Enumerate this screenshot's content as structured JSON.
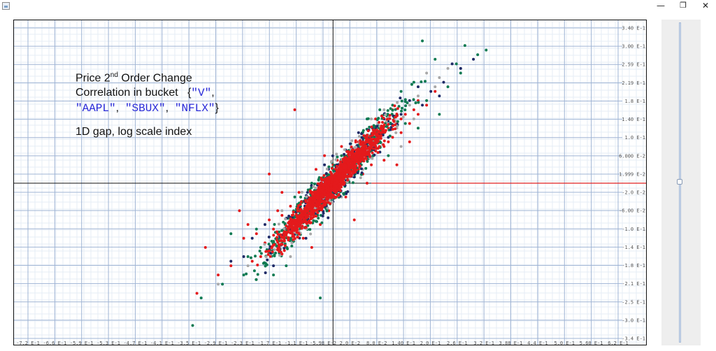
{
  "window": {
    "minimize_glyph": "—",
    "maximize_glyph": "❐",
    "close_glyph": "✕"
  },
  "annotation": {
    "line1_pre": "Price 2",
    "line1_sup": "nd",
    "line1_post": " Order Change",
    "line2_text": "Correlation in bucket ",
    "brace_open": "{",
    "sym1": "\"V\"",
    "comma": ",",
    "sym2": "\"AAPL\"",
    "sym3": "\"SBUX\"",
    "sym4": "\"NFLX\"",
    "brace_close": "}",
    "line4": "1D gap, log scale index"
  },
  "colors": {
    "grid_major": "#9fb4d4",
    "grid_minor": "#e6ecf5",
    "axis": "#111111",
    "reference_line": "#e02020",
    "series": [
      "#e41a1c",
      "#0e7a52",
      "#1f2a66",
      "#a8a8a8"
    ]
  },
  "chart_data": {
    "type": "scatter",
    "title": "",
    "xlabel": "",
    "ylabel": "",
    "grid": true,
    "legend": "none",
    "xlim": [
      -0.75,
      0.68
    ],
    "ylim": [
      -0.355,
      0.355
    ],
    "y_ticks": [
      "3.40 E-1",
      "3.00 E-1",
      "2.59 E-1",
      "2.19 E-1",
      "1.8 E-1",
      "1.40 E-1",
      "1.0 E-1",
      "6.000 E-2",
      "1.999 E-2",
      "-2.0 E-2",
      "-6.00 E-2",
      "-1.0 E-1",
      "-1.4 E-1",
      "-1.8 E-1",
      "-2.1 E-1",
      "-2.5 E-1",
      "-3.0 E-1",
      "-3.4 E-1"
    ],
    "x_ticks": [
      "-7.2 E-1",
      "-6.6 E-1",
      "-5.9 E-1",
      "-5.3 E-1",
      "-4.7 E-1",
      "-4.1 E-1",
      "-3.5 E-1",
      "-2.9 E-1",
      "-2.3 E-1",
      "-1.7 E-1",
      "-1.1 E-1",
      "-5.98 E-2",
      "2.0 E-2",
      "8.0 E-2",
      "1.40 E-1",
      "2.0 E-1",
      "2.6 E-1",
      "3.2 E-1",
      "3.88 E-1",
      "4.4 E-1",
      "5.0 E-1",
      "5.60 E-1",
      "6.2 E-1"
    ],
    "reference_line_y": 0,
    "trend": {
      "slope": 1.0,
      "intercept": 0.0
    },
    "series": [
      {
        "color": "#a8a8a8",
        "points": [
          [
            -0.27,
            -0.22
          ],
          [
            -0.2,
            -0.18
          ],
          [
            -0.15,
            -0.15
          ],
          [
            -0.12,
            -0.06
          ],
          [
            -0.05,
            -0.04
          ],
          [
            0.0,
            0.02
          ],
          [
            0.05,
            0.06
          ],
          [
            0.1,
            0.09
          ],
          [
            0.15,
            0.12
          ],
          [
            0.18,
            0.17
          ],
          [
            0.2,
            0.19
          ],
          [
            0.24,
            0.21
          ],
          [
            0.27,
            0.25
          ],
          [
            0.09,
            0.14
          ],
          [
            -0.08,
            -0.11
          ],
          [
            0.02,
            -0.03
          ],
          [
            0.12,
            0.16
          ],
          [
            0.22,
            0.24
          ],
          [
            -0.18,
            -0.21
          ],
          [
            0.16,
            0.08
          ],
          [
            0.3,
            0.25
          ],
          [
            -0.1,
            -0.16
          ],
          [
            0.07,
            0.03
          ],
          [
            0.19,
            0.14
          ],
          [
            0.25,
            0.23
          ]
        ]
      },
      {
        "color": "#1f2a66",
        "points": [
          [
            -0.24,
            -0.17
          ],
          [
            -0.19,
            -0.12
          ],
          [
            -0.16,
            -0.09
          ],
          [
            -0.1,
            -0.12
          ],
          [
            -0.06,
            -0.02
          ],
          [
            -0.02,
            0.04
          ],
          [
            0.04,
            0.05
          ],
          [
            0.08,
            0.1
          ],
          [
            0.12,
            0.14
          ],
          [
            0.16,
            0.15
          ],
          [
            0.2,
            0.21
          ],
          [
            0.23,
            0.2
          ],
          [
            0.25,
            0.19
          ],
          [
            0.3,
            0.25
          ],
          [
            0.33,
            0.27
          ],
          [
            0.28,
            0.26
          ],
          [
            -0.14,
            -0.18
          ],
          [
            0.0,
            -0.04
          ],
          [
            0.1,
            0.12
          ],
          [
            0.21,
            0.17
          ],
          [
            -0.08,
            -0.07
          ],
          [
            0.13,
            0.1
          ],
          [
            0.18,
            0.18
          ],
          [
            -0.21,
            -0.16
          ],
          [
            0.06,
            0.11
          ],
          [
            0.26,
            0.22
          ]
        ]
      },
      {
        "color": "#0e7a52",
        "points": [
          [
            -0.33,
            -0.31
          ],
          [
            -0.31,
            -0.25
          ],
          [
            -0.26,
            -0.22
          ],
          [
            -0.24,
            -0.11
          ],
          [
            -0.2,
            -0.16
          ],
          [
            -0.17,
            -0.14
          ],
          [
            -0.14,
            -0.2
          ],
          [
            -0.12,
            -0.13
          ],
          [
            -0.1,
            -0.09
          ],
          [
            -0.07,
            -0.08
          ],
          [
            -0.05,
            0.0
          ],
          [
            -0.02,
            -0.05
          ],
          [
            0.0,
            0.03
          ],
          [
            0.02,
            0.06
          ],
          [
            0.05,
            0.02
          ],
          [
            0.07,
            0.11
          ],
          [
            0.09,
            0.07
          ],
          [
            0.12,
            0.11
          ],
          [
            0.14,
            0.17
          ],
          [
            0.17,
            0.13
          ],
          [
            0.19,
            0.22
          ],
          [
            0.22,
            0.18
          ],
          [
            0.24,
            0.27
          ],
          [
            0.27,
            0.21
          ],
          [
            0.29,
            0.26
          ],
          [
            0.31,
            0.3
          ],
          [
            0.34,
            0.28
          ],
          [
            0.36,
            0.29
          ],
          [
            0.21,
            0.31
          ],
          [
            -0.03,
            -0.25
          ],
          [
            0.13,
            0.06
          ],
          [
            -0.21,
            -0.2
          ],
          [
            -0.15,
            -0.15
          ],
          [
            0.03,
            -0.02
          ],
          [
            0.11,
            0.16
          ],
          [
            0.25,
            0.15
          ],
          [
            -0.09,
            -0.03
          ],
          [
            0.16,
            0.2
          ],
          [
            0.3,
            0.24
          ],
          [
            -0.18,
            -0.1
          ],
          [
            0.06,
            0.08
          ],
          [
            0.2,
            0.12
          ],
          [
            -0.11,
            -0.18
          ],
          [
            0.08,
            0.14
          ],
          [
            0.01,
            0.0
          ]
        ]
      },
      {
        "color": "#e41a1c",
        "points": [
          [
            -0.32,
            -0.24
          ],
          [
            -0.3,
            -0.14
          ],
          [
            -0.27,
            -0.2
          ],
          [
            -0.24,
            -0.18
          ],
          [
            -0.22,
            -0.06
          ],
          [
            -0.21,
            -0.12
          ],
          [
            -0.19,
            -0.17
          ],
          [
            -0.18,
            -0.11
          ],
          [
            -0.16,
            -0.13
          ],
          [
            -0.15,
            -0.08
          ],
          [
            -0.14,
            -0.1
          ],
          [
            -0.13,
            -0.14
          ],
          [
            -0.12,
            -0.07
          ],
          [
            -0.11,
            -0.1
          ],
          [
            -0.1,
            -0.05
          ],
          [
            -0.09,
            -0.08
          ],
          [
            -0.08,
            -0.11
          ],
          [
            -0.07,
            -0.04
          ],
          [
            -0.06,
            -0.07
          ],
          [
            -0.05,
            -0.02
          ],
          [
            -0.04,
            -0.05
          ],
          [
            -0.03,
            -0.01
          ],
          [
            -0.02,
            -0.03
          ],
          [
            -0.01,
            0.01
          ],
          [
            0.0,
            -0.01
          ],
          [
            0.01,
            0.02
          ],
          [
            0.02,
            0.0
          ],
          [
            0.03,
            0.04
          ],
          [
            0.04,
            0.02
          ],
          [
            0.05,
            0.05
          ],
          [
            0.06,
            0.03
          ],
          [
            0.07,
            0.07
          ],
          [
            0.08,
            0.05
          ],
          [
            0.09,
            0.09
          ],
          [
            0.1,
            0.07
          ],
          [
            0.11,
            0.1
          ],
          [
            0.12,
            0.08
          ],
          [
            0.13,
            0.12
          ],
          [
            0.14,
            0.1
          ],
          [
            0.15,
            0.13
          ],
          [
            0.16,
            0.11
          ],
          [
            0.17,
            0.15
          ],
          [
            0.18,
            0.13
          ],
          [
            0.19,
            0.16
          ],
          [
            0.2,
            0.18
          ],
          [
            0.22,
            0.17
          ],
          [
            0.24,
            0.2
          ],
          [
            -0.09,
            0.16
          ],
          [
            -0.15,
            0.02
          ],
          [
            0.15,
            0.04
          ],
          [
            0.05,
            -0.08
          ],
          [
            -0.05,
            -0.14
          ],
          [
            0.1,
            0.14
          ],
          [
            -0.12,
            -0.02
          ],
          [
            -0.02,
            0.06
          ],
          [
            0.08,
            0.0
          ],
          [
            0.02,
            0.08
          ],
          [
            -0.07,
            -0.12
          ],
          [
            0.12,
            0.05
          ],
          [
            0.18,
            0.09
          ],
          [
            -0.17,
            -0.16
          ],
          [
            -0.04,
            0.03
          ],
          [
            0.06,
            0.09
          ],
          [
            0.14,
            0.16
          ],
          [
            -0.1,
            -0.12
          ],
          [
            0.0,
            0.04
          ],
          [
            0.03,
            -0.03
          ],
          [
            -0.13,
            -0.06
          ],
          [
            0.16,
            0.14
          ],
          [
            0.2,
            0.15
          ],
          [
            -0.06,
            -0.03
          ],
          [
            0.07,
            0.02
          ],
          [
            -0.01,
            -0.06
          ],
          [
            0.11,
            0.12
          ],
          [
            -0.2,
            -0.09
          ],
          [
            0.09,
            0.04
          ],
          [
            -0.08,
            -0.02
          ],
          [
            0.01,
            0.05
          ],
          [
            0.13,
            0.09
          ],
          [
            -0.03,
            -0.09
          ],
          [
            0.04,
            0.07
          ]
        ]
      }
    ]
  }
}
